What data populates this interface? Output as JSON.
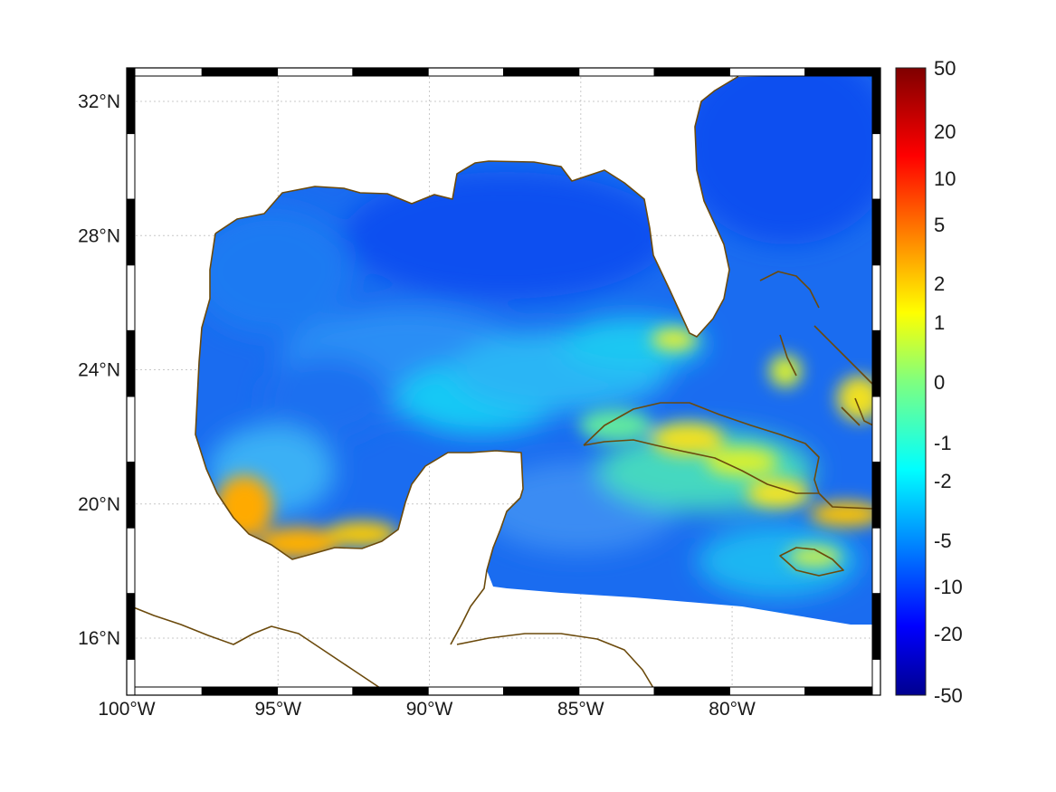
{
  "map": {
    "extent": {
      "lon_min": -100,
      "lon_max": -75.1,
      "lat_min": 14.3,
      "lat_max": 33.0
    },
    "lat_ticks": [
      {
        "lat": 32,
        "label": "32°N"
      },
      {
        "lat": 28,
        "label": "28°N"
      },
      {
        "lat": 24,
        "label": "24°N"
      },
      {
        "lat": 20,
        "label": "20°N"
      },
      {
        "lat": 16,
        "label": "16°N"
      }
    ],
    "lon_ticks": [
      {
        "lon": -100,
        "label": "100°W"
      },
      {
        "lon": -95,
        "label": "95°W"
      },
      {
        "lon": -90,
        "label": "90°W"
      },
      {
        "lon": -85,
        "label": "85°W"
      },
      {
        "lon": -80,
        "label": "80°W"
      }
    ],
    "grid": true,
    "colors": {
      "land_outline": "#6b4a0c",
      "background": "#ffffff"
    }
  },
  "colorbar": {
    "labels": [
      "50",
      "20",
      "10",
      "5",
      "2",
      "1",
      "0",
      "-1",
      "-2",
      "-5",
      "-10",
      "-20",
      "-50"
    ],
    "colormap": "jet"
  }
}
